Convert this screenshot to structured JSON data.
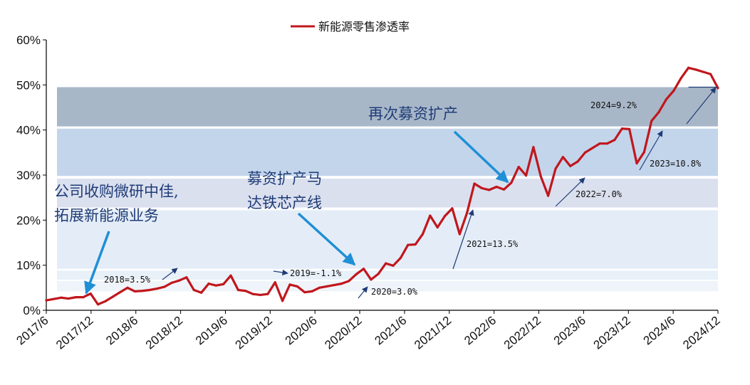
{
  "chart_data": {
    "type": "line",
    "legend": {
      "label": "新能源零售渗透率",
      "position": "top-center",
      "color": "#c0171d"
    },
    "y_ticks": [
      "0%",
      "10%",
      "20%",
      "30%",
      "40%",
      "50%",
      "60%"
    ],
    "ylim": [
      0,
      60
    ],
    "x_ticks": [
      "2017/6",
      "2017/12",
      "2018/6",
      "2018/12",
      "2019/6",
      "2019/12",
      "2020/6",
      "2020/12",
      "2021/6",
      "2021/12",
      "2022/6",
      "2022/12",
      "2023/6",
      "2023/12",
      "2024/6",
      "2024/12"
    ],
    "series": [
      {
        "name": "新能源零售渗透率",
        "color": "#c0171d",
        "values": [
          2.2,
          2.5,
          2.8,
          2.6,
          2.9,
          2.9,
          3.7,
          1.3,
          2.0,
          3.0,
          4.0,
          5.0,
          4.2,
          4.3,
          4.5,
          4.8,
          5.2,
          6.1,
          6.6,
          7.3,
          4.5,
          3.9,
          5.9,
          5.5,
          5.8,
          7.7,
          4.5,
          4.3,
          3.6,
          3.4,
          3.6,
          6.2,
          2.1,
          5.7,
          5.3,
          4.0,
          4.2,
          5.0,
          5.3,
          5.6,
          5.9,
          6.5,
          8.0,
          9.2,
          6.8,
          8.1,
          10.4,
          9.9,
          11.6,
          14.5,
          14.6,
          16.9,
          21.0,
          18.4,
          20.9,
          22.6,
          16.9,
          21.6,
          28.1,
          27.1,
          26.7,
          27.4,
          26.8,
          28.3,
          31.8,
          29.9,
          36.2,
          29.7,
          25.4,
          31.4,
          34.0,
          32.0,
          33.0,
          35.0,
          36.0,
          37.0,
          37.0,
          37.8,
          40.3,
          40.2,
          32.6,
          35.1,
          42.0,
          44.0,
          46.8,
          48.7,
          51.5,
          53.8,
          53.4,
          52.9,
          52.4,
          49.3
        ]
      }
    ],
    "bands": [
      {
        "range": [
          49.5,
          40.8
        ],
        "color": "#a8b7c8",
        "label": "2024=9.2%"
      },
      {
        "range": [
          40.3,
          29.8
        ],
        "color": "#c3d5eb",
        "label": "2023=10.8%"
      },
      {
        "range": [
          29.2,
          22.8
        ],
        "color": "#dbe0ef",
        "label": "2022=7.0%"
      },
      {
        "range": [
          22.2,
          9.2
        ],
        "color": "#e4edf7",
        "label": "2021=13.5%"
      },
      {
        "range": [
          8.8,
          6.8
        ],
        "color": "#e8f0f8",
        "label": "2018=3.5%"
      },
      {
        "range": [
          6.5,
          4.2
        ],
        "color": "#eff4fa",
        "label": "2020=3.0%"
      }
    ],
    "annotations": [
      {
        "text": "2018=3.5%"
      },
      {
        "text": "2019=-1.1%"
      },
      {
        "text": "2020=3.0%"
      },
      {
        "text": "2021=13.5%"
      },
      {
        "text": "2022=7.0%"
      },
      {
        "text": "2023=10.8%"
      },
      {
        "text": "2024=9.2%"
      }
    ],
    "callouts": [
      {
        "lines": [
          "公司收购微研中佳,",
          "拓展新能源业务"
        ]
      },
      {
        "lines": [
          "募资扩产马",
          "达铁芯产线"
        ]
      },
      {
        "lines": [
          "再次募资扩产"
        ]
      }
    ],
    "grid": false
  }
}
